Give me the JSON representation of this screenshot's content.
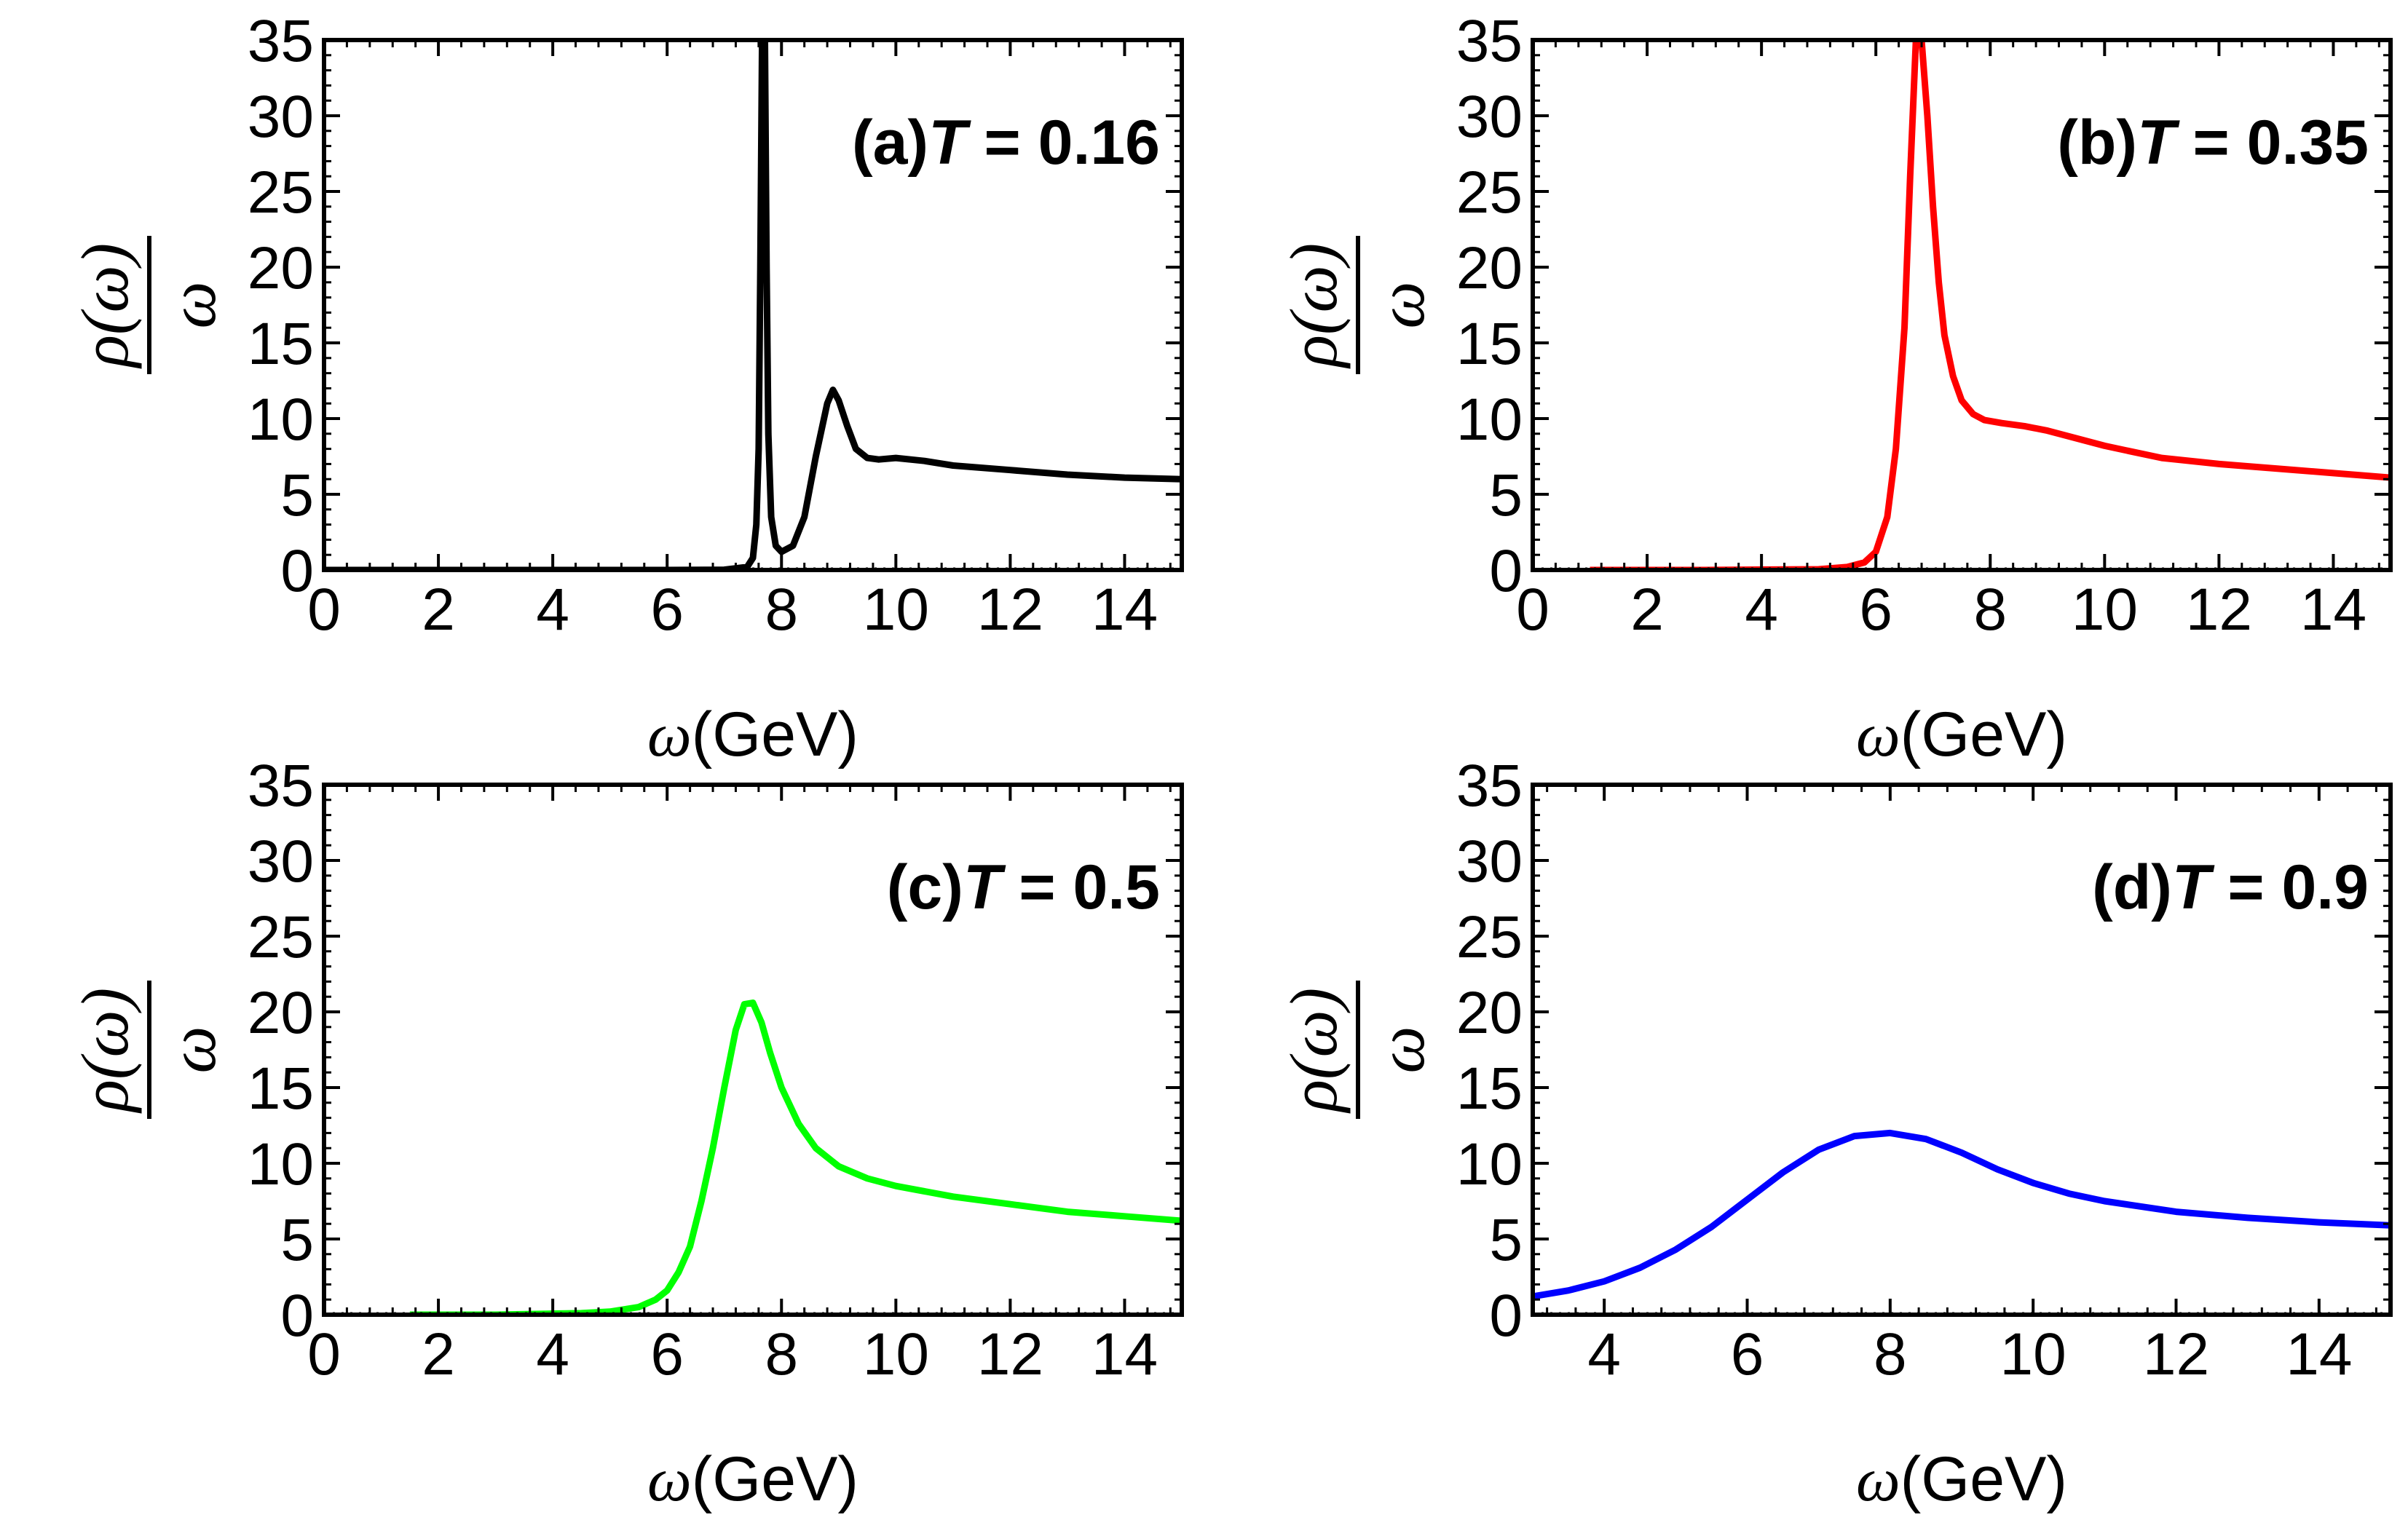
{
  "figure": {
    "y_label_numerator": "ρ(ω)",
    "y_label_denominator": "ω",
    "x_label_symbol": "ω",
    "x_label_unit": "(GeV)"
  },
  "chart_data": [
    {
      "type": "line",
      "panel": "(a)",
      "title_prefix": "(a)",
      "title_var": "T",
      "title_value": "= 0.16",
      "xlabel": "ω(GeV)",
      "ylabel": "ρ(ω)/ω",
      "xlim": [
        0,
        15
      ],
      "ylim": [
        0,
        35
      ],
      "xticks": [
        0,
        2,
        4,
        6,
        8,
        10,
        12,
        14
      ],
      "yticks": [
        0,
        5,
        10,
        15,
        20,
        25,
        30,
        35
      ],
      "color": "#000000",
      "series": [
        {
          "x": [
            0,
            2,
            4,
            6,
            7.0,
            7.4,
            7.5,
            7.56,
            7.6,
            7.63,
            7.66,
            7.68,
            7.71,
            7.74,
            7.77,
            7.82,
            7.9,
            8.0,
            8.2,
            8.4,
            8.6,
            8.8,
            8.9,
            9.0,
            9.15,
            9.3,
            9.5,
            9.7,
            10.0,
            10.5,
            11,
            12,
            13,
            14,
            15
          ],
          "y": [
            0,
            0,
            0,
            0,
            0.02,
            0.2,
            0.8,
            3,
            8,
            20,
            35,
            35,
            35,
            20,
            9,
            3.5,
            1.6,
            1.2,
            1.6,
            3.5,
            7.5,
            11,
            11.9,
            11.2,
            9.5,
            8.0,
            7.4,
            7.3,
            7.4,
            7.2,
            6.9,
            6.6,
            6.3,
            6.1,
            6.0
          ]
        }
      ]
    },
    {
      "type": "line",
      "panel": "(b)",
      "title_prefix": "(b)",
      "title_var": "T",
      "title_value": "= 0.35",
      "xlabel": "ω(GeV)",
      "ylabel": "ρ(ω)/ω",
      "xlim": [
        0,
        15
      ],
      "ylim": [
        0,
        35
      ],
      "xticks": [
        0,
        2,
        4,
        6,
        8,
        10,
        12,
        14
      ],
      "yticks": [
        0,
        5,
        10,
        15,
        20,
        25,
        30,
        35
      ],
      "color": "#ff0000",
      "series": [
        {
          "x": [
            1,
            3,
            5,
            5.5,
            5.8,
            6.0,
            6.2,
            6.35,
            6.5,
            6.6,
            6.7,
            6.8,
            6.9,
            7.0,
            7.1,
            7.2,
            7.35,
            7.5,
            7.7,
            7.9,
            8.2,
            8.6,
            9.0,
            9.5,
            10,
            10.5,
            11,
            12,
            13,
            14,
            15
          ],
          "y": [
            0,
            0,
            0.05,
            0.2,
            0.5,
            1.2,
            3.5,
            8,
            16,
            26,
            35,
            35,
            30,
            24,
            19,
            15.5,
            12.8,
            11.2,
            10.3,
            9.9,
            9.7,
            9.5,
            9.2,
            8.7,
            8.2,
            7.8,
            7.4,
            7.0,
            6.7,
            6.4,
            6.1
          ]
        }
      ]
    },
    {
      "type": "line",
      "panel": "(c)",
      "title_prefix": "(c)",
      "title_var": "T",
      "title_value": "= 0.5",
      "xlabel": "ω(GeV)",
      "ylabel": "ρ(ω)/ω",
      "xlim": [
        0,
        15
      ],
      "ylim": [
        0,
        35
      ],
      "xticks": [
        0,
        2,
        4,
        6,
        8,
        10,
        12,
        14
      ],
      "yticks": [
        0,
        5,
        10,
        15,
        20,
        25,
        30,
        35
      ],
      "color": "#00ff00",
      "series": [
        {
          "x": [
            1.5,
            3,
            4.5,
            5.0,
            5.5,
            5.8,
            6.0,
            6.2,
            6.4,
            6.6,
            6.8,
            7.0,
            7.2,
            7.35,
            7.5,
            7.65,
            7.8,
            8.0,
            8.3,
            8.6,
            9.0,
            9.5,
            10,
            11,
            12,
            13,
            14,
            15
          ],
          "y": [
            0,
            0,
            0.1,
            0.2,
            0.5,
            1.0,
            1.6,
            2.8,
            4.5,
            7.5,
            11,
            15,
            18.8,
            20.5,
            20.6,
            19.3,
            17.3,
            15.0,
            12.6,
            11.0,
            9.8,
            9.0,
            8.5,
            7.8,
            7.3,
            6.8,
            6.5,
            6.2
          ]
        }
      ]
    },
    {
      "type": "line",
      "panel": "(d)",
      "title_prefix": "(d)",
      "title_var": "T",
      "title_value": "= 0.9",
      "xlabel": "ω(GeV)",
      "ylabel": "ρ(ω)/ω",
      "xlim": [
        3,
        15
      ],
      "ylim": [
        0,
        35
      ],
      "xticks": [
        4,
        6,
        8,
        10,
        12,
        14
      ],
      "yticks": [
        0,
        5,
        10,
        15,
        20,
        25,
        30,
        35
      ],
      "color": "#0000ff",
      "series": [
        {
          "x": [
            3,
            3.5,
            4,
            4.5,
            5,
            5.5,
            6,
            6.5,
            7,
            7.5,
            8,
            8.5,
            9,
            9.5,
            10,
            10.5,
            11,
            12,
            13,
            14,
            15
          ],
          "y": [
            1.2,
            1.6,
            2.2,
            3.1,
            4.3,
            5.8,
            7.6,
            9.4,
            10.9,
            11.8,
            12.0,
            11.6,
            10.7,
            9.6,
            8.7,
            8.0,
            7.5,
            6.8,
            6.4,
            6.1,
            5.9
          ]
        }
      ]
    }
  ]
}
